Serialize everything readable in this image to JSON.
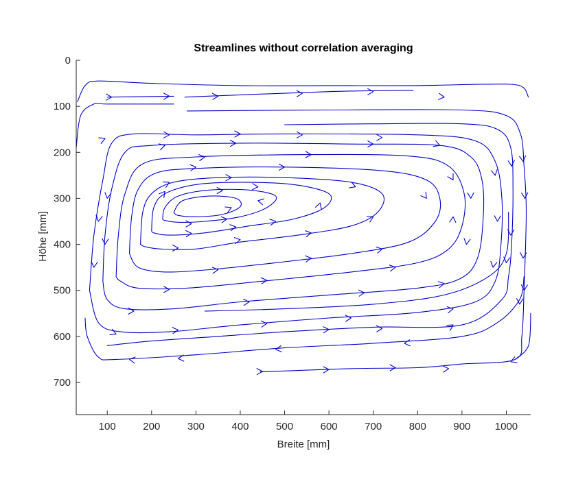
{
  "chart_data": {
    "type": "streamline",
    "title": "Streamlines without correlation averaging",
    "xlabel": "Breite [mm]",
    "ylabel": "Höhe [mm]",
    "xlim": [
      30,
      1055
    ],
    "ylim": [
      0,
      770
    ],
    "y_reversed": true,
    "xticks": [
      100,
      200,
      300,
      400,
      500,
      600,
      700,
      800,
      900,
      1000
    ],
    "yticks": [
      0,
      100,
      200,
      300,
      400,
      500,
      600,
      700
    ],
    "grid": false,
    "colors": {
      "stream": "#0000cc",
      "axis": "#262626"
    },
    "flow_direction": "clockwise",
    "vortex_center": [
      330,
      315
    ],
    "streamlines": [
      {
        "points": [
          [
            33,
            90
          ],
          [
            50,
            55
          ],
          [
            80,
            45
          ],
          [
            200,
            50
          ],
          [
            400,
            55
          ],
          [
            600,
            55
          ],
          [
            800,
            55
          ],
          [
            950,
            52
          ],
          [
            1030,
            55
          ],
          [
            1050,
            80
          ]
        ],
        "arrows": []
      },
      {
        "points": [
          [
            100,
            80
          ],
          [
            250,
            78
          ]
        ],
        "arrows": [
          [
            240,
            78,
            1
          ]
        ]
      },
      {
        "points": [
          [
            275,
            80
          ],
          [
            600,
            68
          ],
          [
            790,
            65
          ]
        ],
        "arrows": [
          [
            350,
            78,
            1
          ],
          [
            540,
            72,
            1
          ],
          [
            700,
            68,
            1
          ]
        ]
      },
      {
        "points": [
          [
            30,
            190
          ],
          [
            40,
            120
          ],
          [
            70,
            95
          ],
          [
            100,
            95
          ],
          [
            250,
            95
          ]
        ],
        "arrows": [
          [
            110,
            80,
            1
          ]
        ]
      },
      {
        "points": [
          [
            280,
            110
          ],
          [
            600,
            108
          ],
          [
            900,
            108
          ],
          [
            1000,
            120
          ],
          [
            1032,
            160
          ],
          [
            1040,
            230
          ],
          [
            1045,
            330
          ],
          [
            1040,
            500
          ],
          [
            1035,
            600
          ],
          [
            1020,
            650
          ],
          [
            900,
            660
          ],
          [
            800,
            668
          ],
          [
            650,
            670
          ],
          [
            445,
            677
          ]
        ],
        "arrows": [
          [
            860,
            80,
            1
          ],
          [
            1038,
            220,
            1
          ],
          [
            1042,
            300,
            1
          ],
          [
            1038,
            430,
            1
          ],
          [
            1030,
            530,
            1
          ],
          [
            870,
            670,
            -1
          ],
          [
            750,
            668,
            -1
          ],
          [
            600,
            672,
            -1
          ],
          [
            450,
            676,
            -1
          ]
        ]
      },
      {
        "points": [
          [
            1055,
            550
          ],
          [
            1050,
            620
          ],
          [
            1020,
            650
          ]
        ],
        "arrows": [
          [
            1040,
            500,
            1
          ]
        ]
      },
      {
        "points": [
          [
            500,
            140
          ],
          [
            700,
            138
          ],
          [
            900,
            138
          ],
          [
            980,
            150
          ],
          [
            1010,
            190
          ],
          [
            1015,
            280
          ],
          [
            1012,
            400
          ],
          [
            1005,
            470
          ],
          [
            990,
            520
          ],
          [
            900,
            575
          ],
          [
            700,
            580
          ],
          [
            500,
            590
          ],
          [
            350,
            600
          ],
          [
            200,
            610
          ],
          [
            100,
            620
          ]
        ],
        "arrows": [
          [
            1012,
            230,
            1
          ],
          [
            1010,
            380,
            1
          ],
          [
            1000,
            440,
            1
          ],
          [
            880,
            575,
            -1
          ],
          [
            720,
            583,
            -1
          ],
          [
            600,
            585,
            -1
          ]
        ]
      },
      {
        "points": [
          [
            50,
            560
          ],
          [
            55,
            600
          ],
          [
            80,
            645
          ],
          [
            120,
            650
          ],
          [
            300,
            640
          ],
          [
            500,
            625
          ],
          [
            700,
            615
          ],
          [
            900,
            600
          ],
          [
            980,
            570
          ],
          [
            1030,
            520
          ],
          [
            1040,
            470
          ]
        ],
        "arrows": [
          [
            150,
            650,
            -1
          ],
          [
            260,
            648,
            -1
          ],
          [
            480,
            628,
            -1
          ],
          [
            770,
            615,
            -1
          ],
          [
            1010,
            655,
            -1
          ]
        ]
      },
      {
        "points": [
          [
            60,
            500
          ],
          [
            70,
            380
          ],
          [
            90,
            260
          ],
          [
            110,
            180
          ],
          [
            160,
            160
          ],
          [
            300,
            162
          ],
          [
            500,
            160
          ],
          [
            800,
            162
          ],
          [
            930,
            175
          ],
          [
            975,
            220
          ],
          [
            990,
            300
          ],
          [
            988,
            400
          ],
          [
            975,
            480
          ],
          [
            930,
            525
          ],
          [
            800,
            548
          ],
          [
            600,
            560
          ],
          [
            400,
            575
          ],
          [
            240,
            590
          ],
          [
            130,
            590
          ],
          [
            80,
            570
          ],
          [
            60,
            500
          ]
        ],
        "arrows": [
          [
            95,
            170,
            1
          ],
          [
            240,
            162,
            1
          ],
          [
            400,
            160,
            1
          ],
          [
            540,
            162,
            1
          ],
          [
            720,
            168,
            1
          ],
          [
            975,
            250,
            1
          ],
          [
            980,
            350,
            1
          ],
          [
            970,
            450,
            1
          ],
          [
            880,
            540,
            -1
          ],
          [
            650,
            560,
            -1
          ],
          [
            460,
            572,
            -1
          ],
          [
            260,
            586,
            -1
          ],
          [
            120,
            595,
            -1
          ],
          [
            70,
            450,
            -1
          ],
          [
            80,
            350,
            -1
          ]
        ]
      },
      {
        "points": [
          [
            90,
            480
          ],
          [
            95,
            380
          ],
          [
            110,
            280
          ],
          [
            140,
            200
          ],
          [
            200,
            185
          ],
          [
            400,
            180
          ],
          [
            650,
            182
          ],
          [
            850,
            185
          ],
          [
            920,
            210
          ],
          [
            945,
            260
          ],
          [
            948,
            340
          ],
          [
            935,
            430
          ],
          [
            895,
            475
          ],
          [
            800,
            495
          ],
          [
            600,
            510
          ],
          [
            400,
            525
          ],
          [
            250,
            540
          ],
          [
            140,
            540
          ],
          [
            100,
            520
          ],
          [
            90,
            480
          ]
        ],
        "arrows": [
          [
            230,
            185,
            1
          ],
          [
            390,
            180,
            1
          ],
          [
            700,
            182,
            1
          ],
          [
            850,
            185,
            1
          ],
          [
            920,
            300,
            1
          ],
          [
            910,
            400,
            1
          ],
          [
            860,
            485,
            -1
          ],
          [
            680,
            505,
            -1
          ],
          [
            420,
            525,
            -1
          ],
          [
            160,
            545,
            -1
          ],
          [
            95,
            400,
            -1
          ],
          [
            100,
            300,
            -1
          ]
        ]
      },
      {
        "points": [
          [
            120,
            470
          ],
          [
            125,
            380
          ],
          [
            140,
            290
          ],
          [
            180,
            225
          ],
          [
            300,
            210
          ],
          [
            550,
            205
          ],
          [
            780,
            208
          ],
          [
            870,
            230
          ],
          [
            905,
            290
          ],
          [
            900,
            360
          ],
          [
            870,
            410
          ],
          [
            800,
            440
          ],
          [
            650,
            460
          ],
          [
            450,
            480
          ],
          [
            280,
            495
          ],
          [
            170,
            495
          ],
          [
            130,
            480
          ],
          [
            120,
            470
          ]
        ],
        "arrows": [
          [
            320,
            210,
            1
          ],
          [
            560,
            205,
            1
          ],
          [
            880,
            260,
            1
          ],
          [
            880,
            340,
            -1
          ],
          [
            750,
            450,
            -1
          ],
          [
            460,
            478,
            -1
          ],
          [
            240,
            498,
            -1
          ]
        ]
      },
      {
        "points": [
          [
            150,
            420
          ],
          [
            155,
            340
          ],
          [
            170,
            280
          ],
          [
            210,
            245
          ],
          [
            300,
            235
          ],
          [
            500,
            232
          ],
          [
            720,
            240
          ],
          [
            820,
            260
          ],
          [
            850,
            300
          ],
          [
            840,
            350
          ],
          [
            780,
            395
          ],
          [
            650,
            420
          ],
          [
            480,
            440
          ],
          [
            330,
            455
          ],
          [
            230,
            460
          ],
          [
            170,
            450
          ],
          [
            150,
            420
          ]
        ],
        "arrows": [
          [
            300,
            232,
            1
          ],
          [
            500,
            232,
            1
          ],
          [
            820,
            300,
            1
          ],
          [
            720,
            410,
            -1
          ],
          [
            560,
            430,
            -1
          ],
          [
            350,
            455,
            -1
          ]
        ]
      },
      {
        "points": [
          [
            175,
            400
          ],
          [
            180,
            330
          ],
          [
            200,
            290
          ],
          [
            250,
            265
          ],
          [
            350,
            255
          ],
          [
            500,
            255
          ],
          [
            650,
            265
          ],
          [
            720,
            290
          ],
          [
            710,
            330
          ],
          [
            650,
            360
          ],
          [
            530,
            380
          ],
          [
            400,
            395
          ],
          [
            300,
            410
          ],
          [
            220,
            410
          ],
          [
            185,
            405
          ],
          [
            175,
            400
          ]
        ],
        "arrows": [
          [
            240,
            265,
            1
          ],
          [
            380,
            255,
            1
          ],
          [
            660,
            275,
            1
          ],
          [
            700,
            340,
            -1
          ],
          [
            560,
            375,
            -1
          ],
          [
            400,
            390,
            -1
          ],
          [
            260,
            408,
            -1
          ]
        ]
      },
      {
        "points": [
          [
            200,
            370
          ],
          [
            205,
            320
          ],
          [
            230,
            290
          ],
          [
            300,
            270
          ],
          [
            400,
            265
          ],
          [
            520,
            270
          ],
          [
            600,
            290
          ],
          [
            590,
            320
          ],
          [
            520,
            345
          ],
          [
            420,
            360
          ],
          [
            320,
            375
          ],
          [
            240,
            380
          ],
          [
            205,
            375
          ],
          [
            200,
            370
          ]
        ],
        "arrows": [
          [
            230,
            285,
            1
          ],
          [
            440,
            275,
            1
          ],
          [
            580,
            310,
            -1
          ],
          [
            480,
            350,
            -1
          ],
          [
            390,
            362,
            -1
          ],
          [
            290,
            376,
            -1
          ]
        ]
      },
      {
        "points": [
          [
            225,
            345
          ],
          [
            230,
            320
          ],
          [
            260,
            295
          ],
          [
            330,
            282
          ],
          [
            420,
            282
          ],
          [
            480,
            295
          ],
          [
            460,
            320
          ],
          [
            400,
            340
          ],
          [
            320,
            350
          ],
          [
            260,
            352
          ],
          [
            230,
            348
          ],
          [
            225,
            345
          ]
        ],
        "arrows": [
          [
            360,
            283,
            1
          ],
          [
            440,
            305,
            -1
          ],
          [
            370,
            345,
            -1
          ],
          [
            290,
            355,
            -1
          ]
        ]
      },
      {
        "points": [
          [
            250,
            330
          ],
          [
            270,
            305
          ],
          [
            330,
            295
          ],
          [
            390,
            300
          ],
          [
            400,
            318
          ],
          [
            360,
            335
          ],
          [
            300,
            340
          ],
          [
            260,
            337
          ],
          [
            250,
            330
          ]
        ],
        "arrows": [
          [
            380,
            320,
            -1
          ]
        ]
      },
      {
        "points": [
          [
            320,
            545
          ],
          [
            500,
            540
          ],
          [
            700,
            530
          ],
          [
            860,
            510
          ],
          [
            960,
            470
          ],
          [
            1000,
            420
          ],
          [
            1005,
            330
          ]
        ],
        "arrows": []
      }
    ]
  }
}
